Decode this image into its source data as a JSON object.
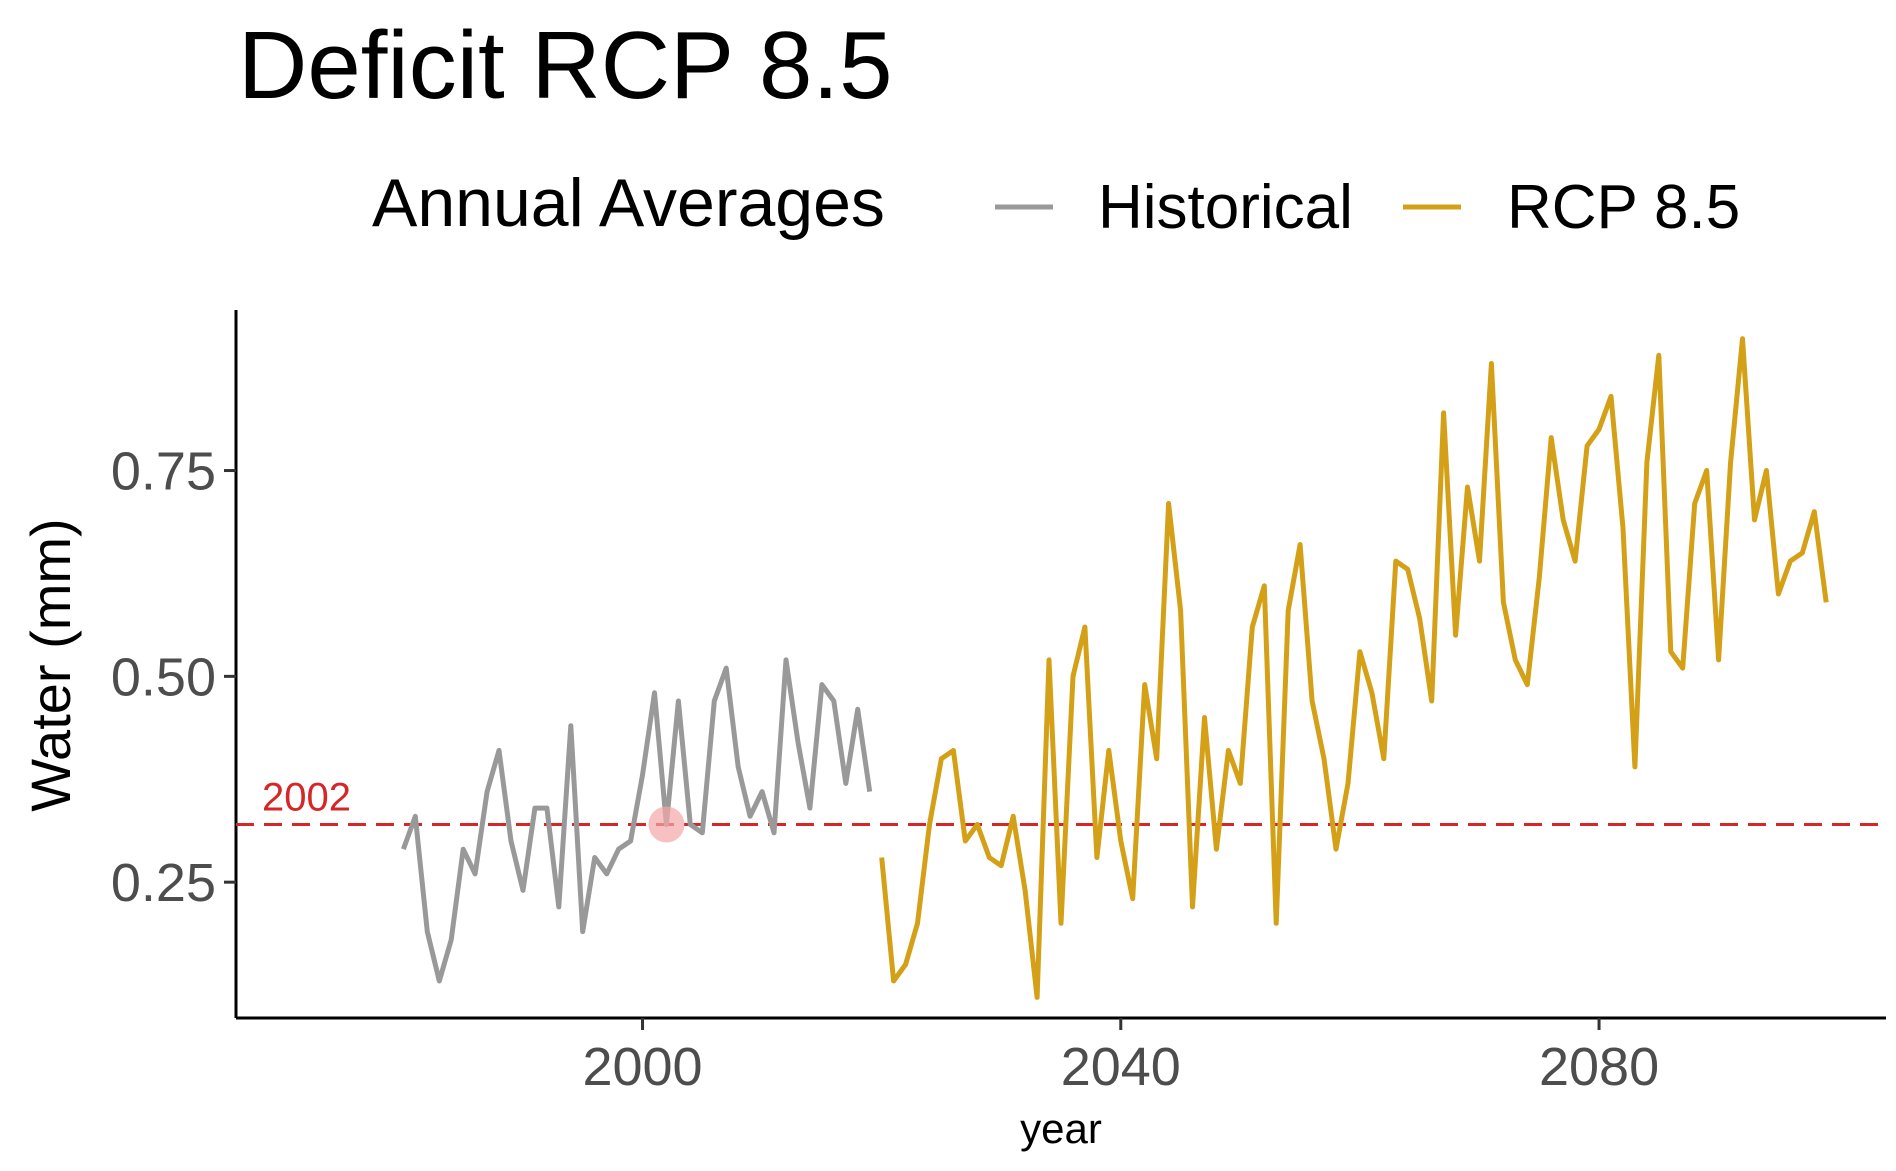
{
  "chart_data": {
    "type": "line",
    "title": "Deficit RCP 8.5",
    "xlabel": "year",
    "ylabel": "Water (mm)",
    "xlim": [
      1966,
      2104
    ],
    "ylim": [
      0.085,
      0.945
    ],
    "x_ticks": [
      2000,
      2040,
      2080
    ],
    "y_ticks": [
      0.25,
      0.5,
      0.75
    ],
    "y_tick_labels": [
      "0.25",
      "0.50",
      "0.75"
    ],
    "grid": false,
    "legend": {
      "title": "Annual Averages",
      "placement": "top",
      "entries": [
        {
          "label": "Historical",
          "color": "#999999"
        },
        {
          "label": "RCP 8.5",
          "color": "#d4a017"
        }
      ]
    },
    "reference_line": {
      "y": 0.32,
      "label": "2002",
      "color": "#d62728",
      "style": "dashed"
    },
    "highlight_point": {
      "x": 2002,
      "y": 0.32,
      "color": "#f4a6a6"
    },
    "series": [
      {
        "name": "Historical",
        "color": "#999999",
        "x": [
          1980,
          1981,
          1982,
          1983,
          1984,
          1985,
          1986,
          1987,
          1988,
          1989,
          1990,
          1991,
          1992,
          1993,
          1994,
          1995,
          1996,
          1997,
          1998,
          1999,
          2000,
          2001,
          2002,
          2003,
          2004,
          2005,
          2006,
          2007,
          2008,
          2009,
          2010,
          2011,
          2012,
          2013,
          2014,
          2015,
          2016,
          2017,
          2018,
          2019
        ],
        "y": [
          0.29,
          0.33,
          0.19,
          0.13,
          0.18,
          0.29,
          0.26,
          0.36,
          0.41,
          0.3,
          0.24,
          0.34,
          0.34,
          0.22,
          0.44,
          0.19,
          0.28,
          0.26,
          0.29,
          0.3,
          0.38,
          0.48,
          0.32,
          0.47,
          0.32,
          0.31,
          0.47,
          0.51,
          0.39,
          0.33,
          0.36,
          0.31,
          0.52,
          0.42,
          0.34,
          0.49,
          0.47,
          0.37,
          0.46,
          0.36
        ]
      },
      {
        "name": "RCP 8.5",
        "color": "#d4a017",
        "x": [
          2020,
          2021,
          2022,
          2023,
          2024,
          2025,
          2026,
          2027,
          2028,
          2029,
          2030,
          2031,
          2032,
          2033,
          2034,
          2035,
          2036,
          2037,
          2038,
          2039,
          2040,
          2041,
          2042,
          2043,
          2044,
          2045,
          2046,
          2047,
          2048,
          2049,
          2050,
          2051,
          2052,
          2053,
          2054,
          2055,
          2056,
          2057,
          2058,
          2059,
          2060,
          2061,
          2062,
          2063,
          2064,
          2065,
          2066,
          2067,
          2068,
          2069,
          2070,
          2071,
          2072,
          2073,
          2074,
          2075,
          2076,
          2077,
          2078,
          2079,
          2080,
          2081,
          2082,
          2083,
          2084,
          2085,
          2086,
          2087,
          2088,
          2089,
          2090,
          2091,
          2092,
          2093,
          2094,
          2095,
          2096,
          2097,
          2098,
          2099
        ],
        "y": [
          0.28,
          0.13,
          0.15,
          0.2,
          0.32,
          0.4,
          0.41,
          0.3,
          0.32,
          0.28,
          0.27,
          0.33,
          0.24,
          0.11,
          0.52,
          0.2,
          0.5,
          0.56,
          0.28,
          0.41,
          0.3,
          0.23,
          0.49,
          0.4,
          0.71,
          0.58,
          0.22,
          0.45,
          0.29,
          0.41,
          0.37,
          0.56,
          0.61,
          0.2,
          0.58,
          0.66,
          0.47,
          0.4,
          0.29,
          0.37,
          0.53,
          0.48,
          0.4,
          0.64,
          0.63,
          0.57,
          0.47,
          0.82,
          0.55,
          0.73,
          0.64,
          0.88,
          0.59,
          0.52,
          0.49,
          0.62,
          0.79,
          0.69,
          0.64,
          0.78,
          0.8,
          0.84,
          0.68,
          0.39,
          0.76,
          0.89,
          0.53,
          0.51,
          0.71,
          0.75,
          0.52,
          0.76,
          0.91,
          0.69,
          0.75,
          0.6,
          0.64,
          0.65,
          0.7,
          0.59
        ]
      }
    ]
  }
}
